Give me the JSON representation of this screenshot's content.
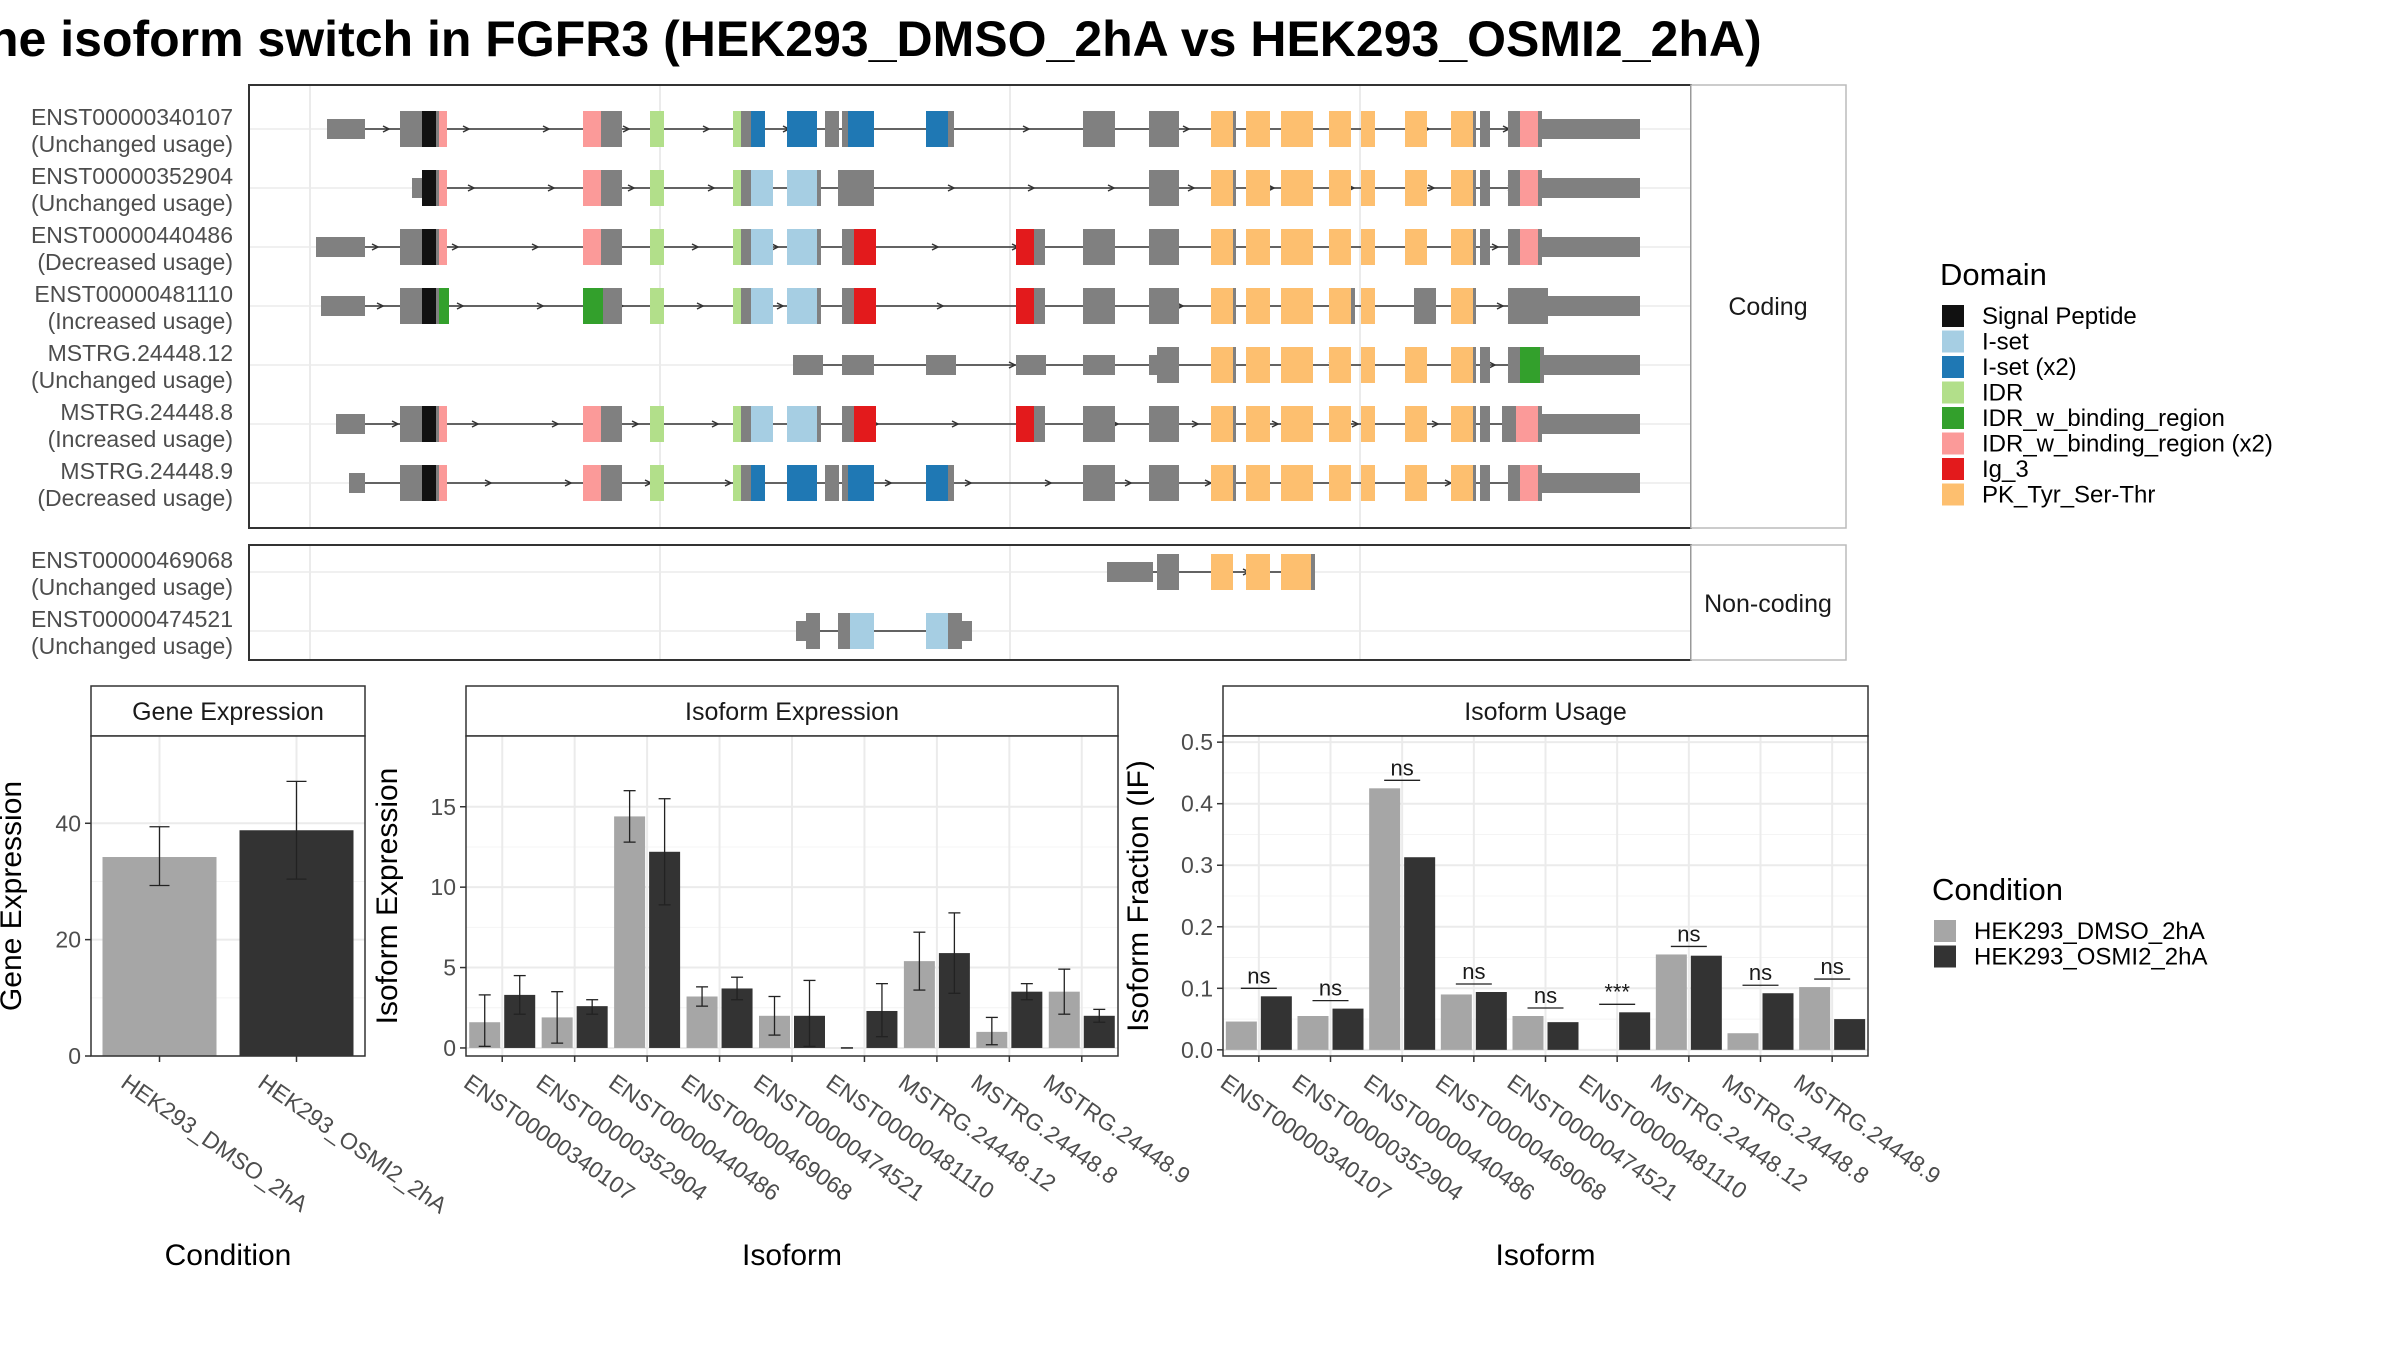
{
  "title": "ne isoform switch in FGFR3 (HEK293_DMSO_2hA vs HEK293_OSMI2_2hA)",
  "colors": {
    "exon": "#808080",
    "condition_dmso": "#A6A6A6",
    "condition_osmi": "#333333",
    "Signal Peptide": "#111111",
    "I-set": "#A6CEE3",
    "I-set (x2)": "#1F78B4",
    "IDR": "#B2DF8A",
    "IDR_w_binding_region": "#33A02C",
    "IDR_w_binding_region (x2)": "#FB9A99",
    "Ig_3": "#E31A1C",
    "PK_Tyr_Ser-Thr": "#FDBF6F"
  },
  "structure": {
    "coding_label": "Coding",
    "noncoding_label": "Non-coding",
    "coding": [
      {
        "id": "ENST00000340107",
        "usage": "(Unchanged usage)"
      },
      {
        "id": "ENST00000352904",
        "usage": "(Unchanged usage)"
      },
      {
        "id": "ENST00000440486",
        "usage": "(Decreased usage)"
      },
      {
        "id": "ENST00000481110",
        "usage": "(Increased usage)"
      },
      {
        "id": "MSTRG.24448.12",
        "usage": "(Unchanged usage)"
      },
      {
        "id": "MSTRG.24448.8",
        "usage": "(Increased usage)"
      },
      {
        "id": "MSTRG.24448.9",
        "usage": "(Decreased usage)"
      }
    ],
    "noncoding": [
      {
        "id": "ENST00000469068",
        "usage": "(Unchanged usage)"
      },
      {
        "id": "ENST00000474521",
        "usage": "(Unchanged usage)"
      }
    ]
  },
  "domain_legend": {
    "title": "Domain",
    "items": [
      "Signal Peptide",
      "I-set",
      "I-set (x2)",
      "IDR",
      "IDR_w_binding_region",
      "IDR_w_binding_region (x2)",
      "Ig_3",
      "PK_Tyr_Ser-Thr"
    ]
  },
  "condition_legend": {
    "title": "Condition",
    "items": [
      "HEK293_DMSO_2hA",
      "HEK293_OSMI2_2hA"
    ]
  },
  "chart_data": [
    {
      "type": "bar",
      "title": "Gene Expression",
      "xlabel": "Condition",
      "ylabel": "Gene Expression",
      "categories": [
        "HEK293_DMSO_2hA",
        "HEK293_OSMI2_2hA"
      ],
      "values": [
        34.2,
        38.8
      ],
      "errors": [
        [
          29.3,
          39.4
        ],
        [
          30.4,
          47.2
        ]
      ],
      "ylim": [
        0,
        55
      ],
      "yticks": [
        0,
        20,
        40
      ]
    },
    {
      "type": "bar",
      "title": "Isoform Expression",
      "xlabel": "Isoform",
      "ylabel": "Isoform Expression",
      "categories": [
        "ENST00000340107",
        "ENST00000352904",
        "ENST00000440486",
        "ENST00000469068",
        "ENST00000474521",
        "ENST00000481110",
        "MSTRG.24448.12",
        "MSTRG.24448.8",
        "MSTRG.24448.9"
      ],
      "series": [
        {
          "name": "HEK293_DMSO_2hA",
          "values": [
            1.6,
            1.9,
            14.4,
            3.2,
            2.0,
            0.0,
            5.4,
            1.0,
            3.5
          ],
          "errors": [
            [
              0.1,
              3.3
            ],
            [
              0.3,
              3.5
            ],
            [
              12.8,
              16.0
            ],
            [
              2.6,
              3.8
            ],
            [
              0.8,
              3.2
            ],
            [
              0.0,
              0.0
            ],
            [
              3.6,
              7.2
            ],
            [
              0.2,
              1.9
            ],
            [
              2.1,
              4.9
            ]
          ]
        },
        {
          "name": "HEK293_OSMI2_2hA",
          "values": [
            3.3,
            2.6,
            12.2,
            3.7,
            2.0,
            2.3,
            5.9,
            3.5,
            2.0
          ],
          "errors": [
            [
              2.1,
              4.5
            ],
            [
              2.1,
              3.0
            ],
            [
              8.9,
              15.5
            ],
            [
              3.0,
              4.4
            ],
            [
              0.1,
              4.2
            ],
            [
              0.7,
              4.0
            ],
            [
              3.4,
              8.4
            ],
            [
              3.0,
              4.0
            ],
            [
              1.6,
              2.4
            ]
          ]
        }
      ],
      "ylim": [
        -0.5,
        19.4
      ],
      "yticks": [
        0,
        5,
        10,
        15
      ]
    },
    {
      "type": "bar",
      "title": "Isoform Usage",
      "xlabel": "Isoform",
      "ylabel": "Isoform Fraction (IF)",
      "categories": [
        "ENST00000340107",
        "ENST00000352904",
        "ENST00000440486",
        "ENST00000469068",
        "ENST00000474521",
        "ENST00000481110",
        "MSTRG.24448.12",
        "MSTRG.24448.8",
        "MSTRG.24448.9"
      ],
      "series": [
        {
          "name": "HEK293_DMSO_2hA",
          "values": [
            0.046,
            0.055,
            0.425,
            0.09,
            0.055,
            0.0,
            0.155,
            0.027,
            0.102
          ]
        },
        {
          "name": "HEK293_OSMI2_2hA",
          "values": [
            0.087,
            0.067,
            0.313,
            0.094,
            0.045,
            0.061,
            0.153,
            0.092,
            0.05
          ]
        }
      ],
      "significance": [
        "ns",
        "ns",
        "ns",
        "ns",
        "ns",
        "***",
        "ns",
        "ns",
        "ns"
      ],
      "ylim": [
        -0.01,
        0.51
      ],
      "yticks": [
        0.0,
        0.1,
        0.2,
        0.3,
        0.4,
        0.5
      ]
    }
  ]
}
